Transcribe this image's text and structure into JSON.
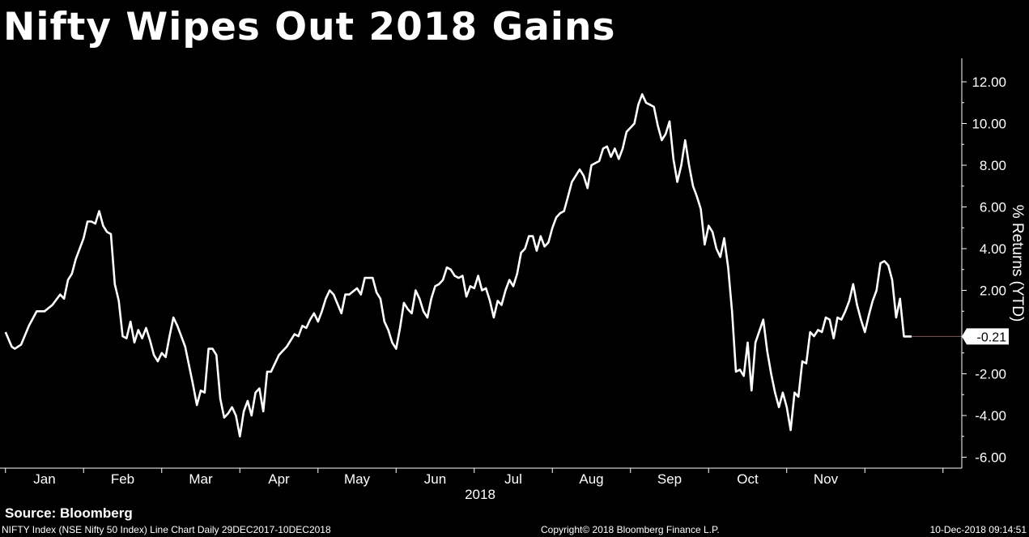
{
  "header": {
    "title": "Nifty Wipes Out 2018 Gains"
  },
  "footer": {
    "source": "Source: Bloomberg",
    "description": "NIFTY Index (NSE Nifty 50 Index) Line Chart  Daily 29DEC2017-10DEC2018",
    "copyright": "Copyright© 2018 Bloomberg Finance L.P.",
    "timestamp": "10-Dec-2018 09:14:51"
  },
  "chart_data": {
    "type": "line",
    "title": "Nifty Wipes Out 2018 Gains",
    "ylabel": "% Returns (YTD)",
    "xlabel": "2018",
    "ylim": [
      -6.5,
      13
    ],
    "y_ticks": [
      "12.00",
      "10.00",
      "8.00",
      "6.00",
      "4.00",
      "2.00",
      "-2.00",
      "-4.00",
      "-6.00"
    ],
    "y_tick_values": [
      12,
      10,
      8,
      6,
      4,
      2,
      -2,
      -4,
      -6
    ],
    "x_ticks": [
      "Jan",
      "Feb",
      "Mar",
      "Apr",
      "May",
      "Jun",
      "Jul",
      "Aug",
      "Sep",
      "Oct",
      "Nov"
    ],
    "x_tick_months": [
      1,
      2,
      3,
      4,
      5,
      6,
      7,
      8,
      9,
      10,
      11
    ],
    "last_value_label": "-0.21",
    "last_value": -0.21,
    "colors": {
      "line": "#ffffff",
      "last_value_marker": "#e03030",
      "background": "#000000"
    },
    "grid": false,
    "series": [
      {
        "values": [
          [
            0.0,
            0.0
          ],
          [
            0.08,
            -0.7
          ],
          [
            0.12,
            -0.8
          ],
          [
            0.2,
            -0.6
          ],
          [
            0.3,
            0.3
          ],
          [
            0.4,
            1.0
          ],
          [
            0.5,
            1.0
          ],
          [
            0.6,
            1.3
          ],
          [
            0.7,
            1.8
          ],
          [
            0.75,
            1.6
          ],
          [
            0.8,
            2.5
          ],
          [
            0.85,
            2.8
          ],
          [
            0.9,
            3.5
          ],
          [
            1.0,
            4.5
          ],
          [
            1.05,
            5.3
          ],
          [
            1.1,
            5.3
          ],
          [
            1.15,
            5.2
          ],
          [
            1.2,
            5.8
          ],
          [
            1.25,
            5.1
          ],
          [
            1.3,
            4.8
          ],
          [
            1.35,
            4.7
          ],
          [
            1.4,
            2.3
          ],
          [
            1.45,
            1.5
          ],
          [
            1.5,
            -0.2
          ],
          [
            1.55,
            -0.3
          ],
          [
            1.6,
            0.5
          ],
          [
            1.65,
            -0.5
          ],
          [
            1.7,
            0.1
          ],
          [
            1.75,
            -0.3
          ],
          [
            1.8,
            0.2
          ],
          [
            1.85,
            -0.4
          ],
          [
            1.9,
            -1.1
          ],
          [
            1.95,
            -1.4
          ],
          [
            2.0,
            -1.0
          ],
          [
            2.05,
            -1.2
          ],
          [
            2.1,
            -0.2
          ],
          [
            2.15,
            0.7
          ],
          [
            2.2,
            0.3
          ],
          [
            2.25,
            -0.2
          ],
          [
            2.3,
            -0.7
          ],
          [
            2.4,
            -2.5
          ],
          [
            2.45,
            -3.5
          ],
          [
            2.5,
            -2.8
          ],
          [
            2.55,
            -2.9
          ],
          [
            2.6,
            -0.8
          ],
          [
            2.65,
            -0.8
          ],
          [
            2.7,
            -1.1
          ],
          [
            2.75,
            -3.2
          ],
          [
            2.8,
            -4.1
          ],
          [
            2.85,
            -3.9
          ],
          [
            2.9,
            -3.6
          ],
          [
            2.95,
            -4.0
          ],
          [
            3.0,
            -5.0
          ],
          [
            3.05,
            -3.8
          ],
          [
            3.1,
            -3.3
          ],
          [
            3.15,
            -4.0
          ],
          [
            3.2,
            -2.9
          ],
          [
            3.25,
            -2.7
          ],
          [
            3.3,
            -3.8
          ],
          [
            3.35,
            -1.9
          ],
          [
            3.4,
            -1.9
          ],
          [
            3.5,
            -1.1
          ],
          [
            3.55,
            -0.9
          ],
          [
            3.6,
            -0.7
          ],
          [
            3.65,
            -0.4
          ],
          [
            3.7,
            -0.1
          ],
          [
            3.75,
            -0.2
          ],
          [
            3.8,
            0.3
          ],
          [
            3.85,
            0.2
          ],
          [
            3.9,
            0.6
          ],
          [
            3.95,
            0.9
          ],
          [
            4.0,
            0.5
          ],
          [
            4.05,
            1.0
          ],
          [
            4.1,
            1.6
          ],
          [
            4.15,
            2.0
          ],
          [
            4.2,
            1.8
          ],
          [
            4.3,
            0.9
          ],
          [
            4.35,
            1.8
          ],
          [
            4.4,
            1.8
          ],
          [
            4.5,
            2.1
          ],
          [
            4.55,
            1.8
          ],
          [
            4.6,
            2.6
          ],
          [
            4.7,
            2.6
          ],
          [
            4.75,
            1.9
          ],
          [
            4.8,
            1.6
          ],
          [
            4.85,
            0.5
          ],
          [
            4.9,
            0.1
          ],
          [
            4.95,
            -0.5
          ],
          [
            5.0,
            -0.8
          ],
          [
            5.05,
            0.2
          ],
          [
            5.1,
            1.4
          ],
          [
            5.15,
            1.1
          ],
          [
            5.2,
            0.9
          ],
          [
            5.25,
            2.0
          ],
          [
            5.3,
            1.6
          ],
          [
            5.35,
            1.0
          ],
          [
            5.4,
            0.7
          ],
          [
            5.45,
            1.6
          ],
          [
            5.5,
            2.2
          ],
          [
            5.55,
            2.3
          ],
          [
            5.6,
            2.5
          ],
          [
            5.65,
            3.1
          ],
          [
            5.7,
            3.0
          ],
          [
            5.75,
            2.7
          ],
          [
            5.8,
            2.6
          ],
          [
            5.85,
            2.7
          ],
          [
            5.9,
            1.7
          ],
          [
            5.95,
            2.2
          ],
          [
            6.0,
            2.1
          ],
          [
            6.05,
            2.7
          ],
          [
            6.1,
            2.0
          ],
          [
            6.15,
            2.1
          ],
          [
            6.2,
            1.5
          ],
          [
            6.25,
            0.7
          ],
          [
            6.3,
            1.5
          ],
          [
            6.35,
            1.3
          ],
          [
            6.4,
            2.0
          ],
          [
            6.45,
            2.5
          ],
          [
            6.5,
            2.2
          ],
          [
            6.55,
            2.8
          ],
          [
            6.6,
            3.8
          ],
          [
            6.65,
            4.0
          ],
          [
            6.7,
            4.6
          ],
          [
            6.75,
            4.6
          ],
          [
            6.8,
            3.9
          ],
          [
            6.85,
            4.6
          ],
          [
            6.9,
            4.1
          ],
          [
            6.95,
            4.3
          ],
          [
            7.0,
            5.0
          ],
          [
            7.05,
            5.5
          ],
          [
            7.1,
            5.7
          ],
          [
            7.15,
            5.8
          ],
          [
            7.2,
            6.5
          ],
          [
            7.25,
            7.2
          ],
          [
            7.3,
            7.5
          ],
          [
            7.35,
            7.8
          ],
          [
            7.4,
            7.5
          ],
          [
            7.45,
            6.9
          ],
          [
            7.5,
            8.0
          ],
          [
            7.55,
            8.1
          ],
          [
            7.6,
            8.2
          ],
          [
            7.65,
            8.8
          ],
          [
            7.7,
            8.9
          ],
          [
            7.75,
            8.4
          ],
          [
            7.8,
            8.8
          ],
          [
            7.85,
            8.3
          ],
          [
            7.9,
            8.8
          ],
          [
            7.95,
            9.6
          ],
          [
            8.0,
            9.8
          ],
          [
            8.05,
            10.0
          ],
          [
            8.1,
            10.9
          ],
          [
            8.15,
            11.4
          ],
          [
            8.2,
            11.0
          ],
          [
            8.25,
            10.9
          ],
          [
            8.3,
            10.8
          ],
          [
            8.35,
            9.9
          ],
          [
            8.4,
            9.2
          ],
          [
            8.45,
            9.5
          ],
          [
            8.5,
            10.1
          ],
          [
            8.55,
            8.3
          ],
          [
            8.6,
            7.2
          ],
          [
            8.65,
            8.0
          ],
          [
            8.7,
            9.2
          ],
          [
            8.75,
            8.0
          ],
          [
            8.8,
            7.0
          ],
          [
            8.85,
            6.5
          ],
          [
            8.9,
            5.9
          ],
          [
            8.95,
            4.2
          ],
          [
            9.0,
            5.1
          ],
          [
            9.05,
            4.8
          ],
          [
            9.1,
            4.0
          ],
          [
            9.15,
            3.6
          ],
          [
            9.2,
            4.5
          ],
          [
            9.25,
            3.1
          ],
          [
            9.3,
            1.0
          ],
          [
            9.35,
            -1.9
          ],
          [
            9.4,
            -1.8
          ],
          [
            9.45,
            -2.1
          ],
          [
            9.5,
            -0.5
          ],
          [
            9.55,
            -2.8
          ],
          [
            9.6,
            -0.5
          ],
          [
            9.7,
            0.6
          ],
          [
            9.75,
            -0.9
          ],
          [
            9.8,
            -2.0
          ],
          [
            9.85,
            -2.9
          ],
          [
            9.9,
            -3.6
          ],
          [
            9.95,
            -2.9
          ],
          [
            10.0,
            -3.6
          ],
          [
            10.05,
            -4.7
          ],
          [
            10.1,
            -2.9
          ],
          [
            10.15,
            -3.1
          ],
          [
            10.2,
            -1.4
          ],
          [
            10.25,
            -1.5
          ],
          [
            10.3,
            0.0
          ],
          [
            10.35,
            -0.2
          ],
          [
            10.4,
            0.1
          ],
          [
            10.45,
            0.0
          ],
          [
            10.5,
            0.7
          ],
          [
            10.55,
            0.6
          ],
          [
            10.6,
            -0.3
          ],
          [
            10.65,
            0.7
          ],
          [
            10.7,
            0.6
          ],
          [
            10.75,
            1.0
          ],
          [
            10.8,
            1.5
          ],
          [
            10.85,
            2.3
          ],
          [
            10.9,
            1.3
          ],
          [
            10.95,
            0.6
          ],
          [
            11.0,
            0.0
          ],
          [
            11.05,
            0.8
          ],
          [
            11.1,
            1.5
          ],
          [
            11.15,
            2.0
          ],
          [
            11.2,
            3.3
          ],
          [
            11.25,
            3.4
          ],
          [
            11.3,
            3.2
          ],
          [
            11.35,
            2.5
          ],
          [
            11.4,
            0.7
          ],
          [
            11.45,
            1.6
          ],
          [
            11.5,
            -0.21
          ],
          [
            11.6,
            -0.21
          ]
        ]
      }
    ]
  }
}
